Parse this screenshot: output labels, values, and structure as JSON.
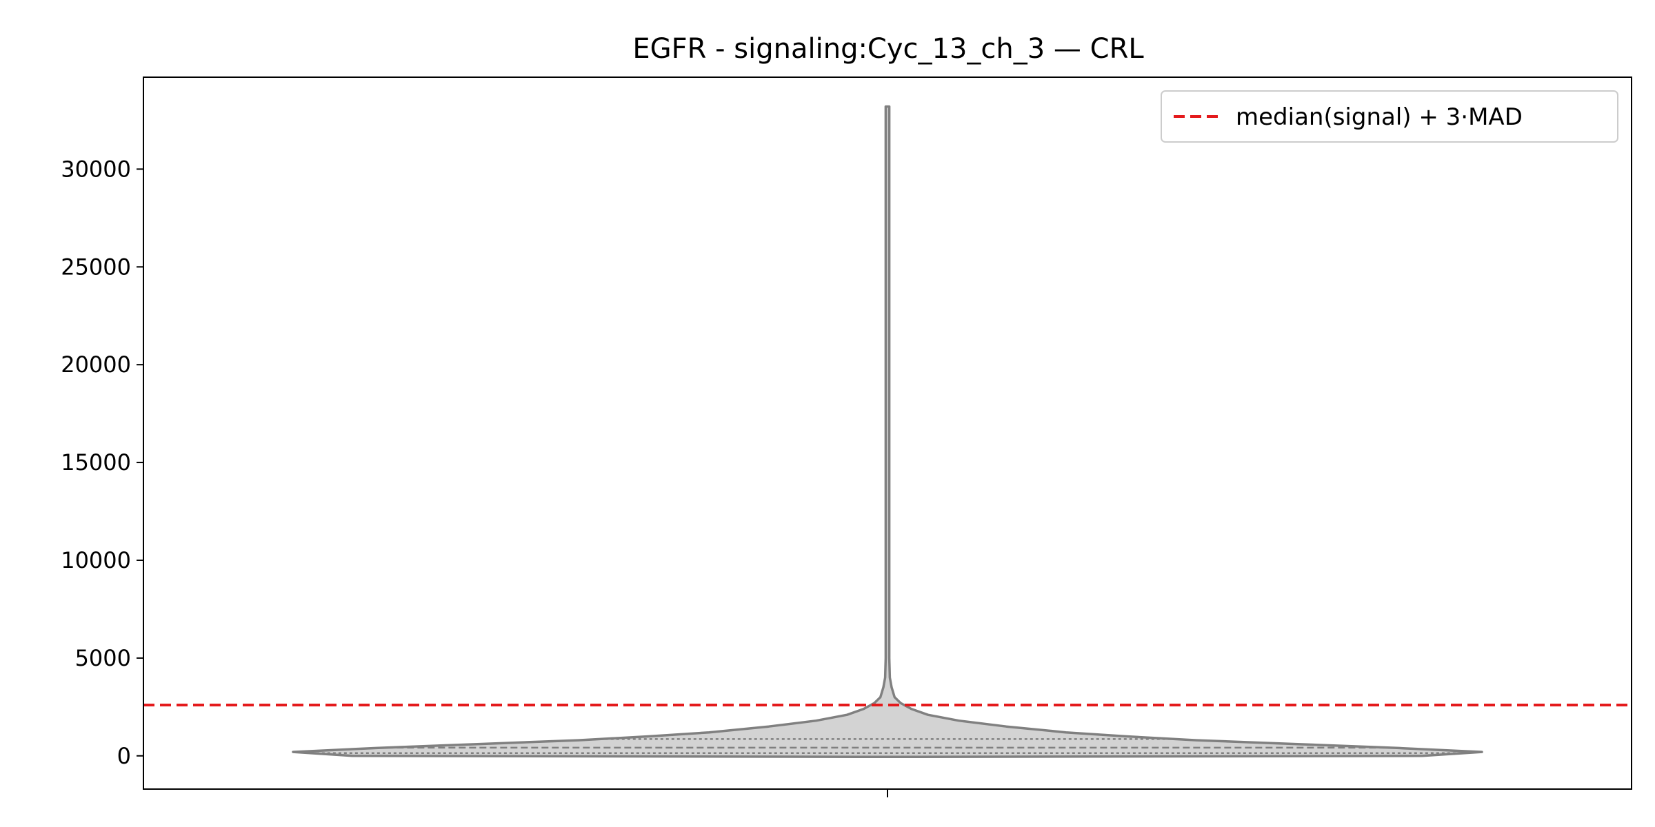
{
  "chart_data": {
    "type": "violin",
    "title": "EGFR - signaling:Cyc_13_ch_3 — CRL",
    "xlabel": "",
    "ylabel": "",
    "ylim": [
      -1700,
      34700
    ],
    "yticks": [
      0,
      5000,
      10000,
      15000,
      20000,
      25000,
      30000
    ],
    "x_categories": [
      ""
    ],
    "grid": false,
    "legend": {
      "placement": "top-right",
      "entries": [
        {
          "label": "median(signal) + 3·MAD",
          "style": "dashed",
          "color": "#e41a1c"
        }
      ]
    },
    "threshold": {
      "value": 2600,
      "label": "median(signal) + 3·MAD",
      "color": "#e41a1c"
    },
    "violin": {
      "fill_color": "#d3d3d3",
      "line_color": "#808080",
      "min": -50,
      "max": 33200,
      "quartiles": [
        140,
        420,
        860
      ],
      "density_profile": [
        {
          "y": -50,
          "w": 0.05
        },
        {
          "y": 0,
          "w": 0.9
        },
        {
          "y": 200,
          "w": 1.0
        },
        {
          "y": 400,
          "w": 0.86
        },
        {
          "y": 600,
          "w": 0.69
        },
        {
          "y": 800,
          "w": 0.52
        },
        {
          "y": 1000,
          "w": 0.4
        },
        {
          "y": 1200,
          "w": 0.3
        },
        {
          "y": 1500,
          "w": 0.2
        },
        {
          "y": 1800,
          "w": 0.12
        },
        {
          "y": 2100,
          "w": 0.068
        },
        {
          "y": 2400,
          "w": 0.04
        },
        {
          "y": 2700,
          "w": 0.022
        },
        {
          "y": 3000,
          "w": 0.012
        },
        {
          "y": 3500,
          "w": 0.007
        },
        {
          "y": 4000,
          "w": 0.004
        },
        {
          "y": 5000,
          "w": 0.003
        },
        {
          "y": 33200,
          "w": 0.003
        }
      ]
    }
  }
}
